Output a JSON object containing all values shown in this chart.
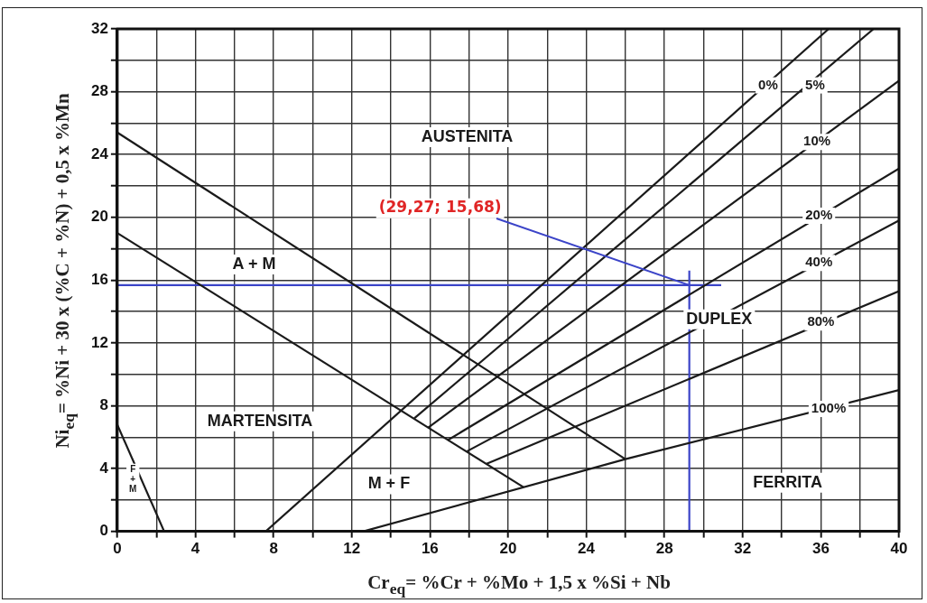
{
  "chart_data": {
    "type": "line",
    "xlabel": "Cr$_{eq}$= %Cr + %Mo + 1,5 x %Si + Nb",
    "ylabel": "Ni$_{eq}$= %Ni + 30 x (%C + %N) + 0,5 x %Mn",
    "xlim": [
      0,
      40
    ],
    "xticks": [
      0,
      {
        "value": 2,
        "label": null
      },
      4,
      {
        "value": 6,
        "label": null
      },
      8,
      {
        "value": 10,
        "label": null
      },
      12,
      {
        "value": 14,
        "label": null
      },
      16,
      {
        "value": 18,
        "label": null
      },
      20,
      {
        "value": 22,
        "label": null
      },
      24,
      {
        "value": 26,
        "label": null
      },
      28,
      {
        "value": 30,
        "label": null
      },
      32,
      {
        "value": 34,
        "label": null
      },
      36,
      {
        "value": 38,
        "label": null
      },
      40
    ],
    "ylim": [
      0,
      32
    ],
    "yticks": [
      0,
      {
        "value": 2,
        "label": null
      },
      4,
      {
        "value": 6,
        "label": null
      },
      8,
      {
        "value": 10,
        "label": null
      },
      12,
      {
        "value": 14,
        "label": null
      },
      16,
      {
        "value": 18,
        "label": null
      },
      20,
      {
        "value": 22,
        "label": null
      },
      24,
      {
        "value": 26,
        "label": null
      },
      28,
      {
        "value": 30,
        "label": null
      },
      32
    ],
    "grid": true,
    "legend": false,
    "marker": "none",
    "line_style": "solid",
    "series": [
      {
        "color": "#1a1a1a",
        "x": [
          0,
          26
        ],
        "values": [
          25.4,
          4.6
        ]
      },
      {
        "color": "#1a1a1a",
        "x": [
          0,
          20.8
        ],
        "values": [
          19,
          2.8
        ]
      },
      {
        "color": "#1a1a1a",
        "x": [
          0,
          2.4
        ],
        "values": [
          6.8,
          0
        ]
      },
      {
        "name": "0%",
        "color": "#1a1a1a",
        "x": [
          7.6,
          36.4
        ],
        "values": [
          0,
          32
        ]
      },
      {
        "name": "5%",
        "color": "#1a1a1a",
        "x": [
          15.2,
          38.7
        ],
        "values": [
          7.2,
          32
        ]
      },
      {
        "name": "10%",
        "color": "#1a1a1a",
        "x": [
          15.9,
          40
        ],
        "values": [
          6.6,
          28.7
        ]
      },
      {
        "name": "20%",
        "color": "#1a1a1a",
        "x": [
          16.9,
          40
        ],
        "values": [
          5.8,
          23.1
        ]
      },
      {
        "name": "40%",
        "color": "#1a1a1a",
        "x": [
          17.9,
          40
        ],
        "values": [
          5.1,
          19.8
        ]
      },
      {
        "name": "80%",
        "color": "#1a1a1a",
        "x": [
          18.9,
          40
        ],
        "values": [
          4.3,
          15.3
        ]
      },
      {
        "name": "100%",
        "color": "#1a1a1a",
        "x": [
          12.6,
          26,
          40
        ],
        "values": [
          0,
          4.6,
          9
        ]
      },
      {
        "color": "#3b44c8",
        "x": [
          0,
          30.9
        ],
        "values": [
          15.68,
          15.68
        ]
      },
      {
        "color": "#3b44c8",
        "x": [
          29.27,
          29.27
        ],
        "values": [
          0,
          16.6
        ]
      }
    ],
    "annotations": [
      {
        "text": "(29,27; 15,68)",
        "x": 29.27,
        "y": 15.68
      },
      "AUSTENITA",
      "A + M",
      "MARTENSITA",
      "M + F",
      "DUPLEX",
      "FERRITA",
      "F\n+\nM"
    ]
  }
}
